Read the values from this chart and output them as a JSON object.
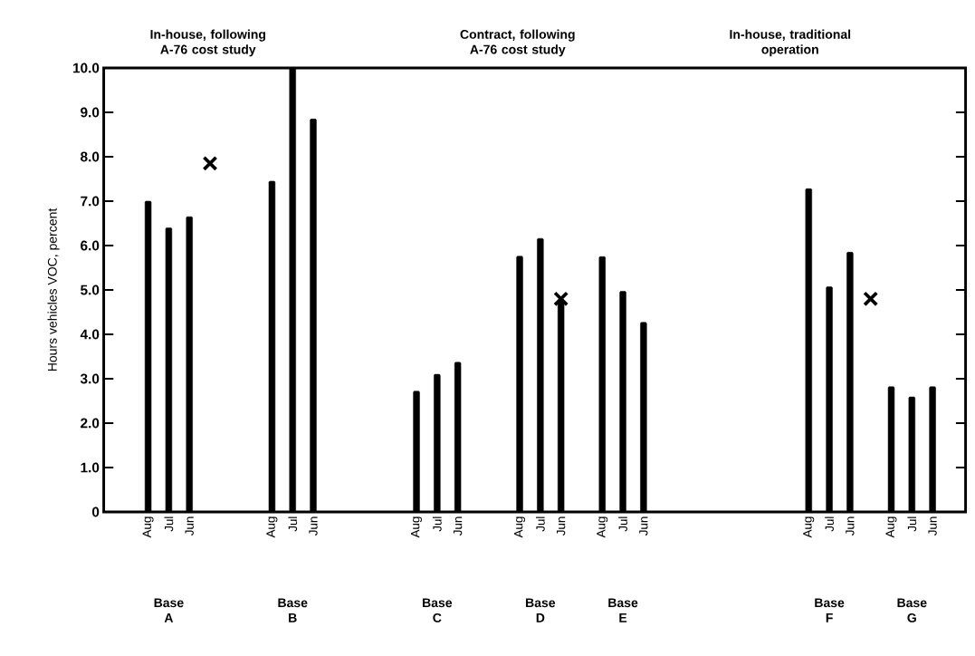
{
  "chart_data": {
    "type": "bar",
    "ylabel": "Hours vehicles VOC, percent",
    "categories": [
      null,
      null,
      "Aug",
      "Jul",
      "Jun",
      null,
      null,
      null,
      "Aug",
      "Jul",
      "Jun",
      null,
      null,
      null,
      null,
      "Aug",
      "Jul",
      "Jun",
      null,
      null,
      "Aug",
      "Jul",
      "Jun",
      null,
      "Aug",
      "Jul",
      "Jun",
      null,
      null,
      null,
      null,
      null,
      null,
      null,
      "Aug",
      "Jul",
      "Jun",
      null,
      "Aug",
      "Jul",
      "Jun",
      null
    ],
    "series": [
      {
        "color": "#000000",
        "values": [
          null,
          null,
          7.0,
          6.4,
          6.65,
          null,
          null,
          null,
          7.45,
          10.0,
          8.85,
          null,
          null,
          null,
          null,
          2.72,
          3.1,
          3.37,
          null,
          null,
          5.76,
          6.16,
          4.75,
          null,
          5.75,
          4.97,
          4.27,
          null,
          null,
          null,
          null,
          null,
          null,
          null,
          7.28,
          5.07,
          5.85,
          null,
          2.82,
          2.59,
          2.82,
          null
        ]
      },
      {
        "type": "scatter",
        "marker": "cross",
        "color": "#000000",
        "values": [
          null,
          null,
          null,
          null,
          null,
          7.85,
          null,
          null,
          null,
          null,
          null,
          null,
          null,
          null,
          null,
          null,
          null,
          null,
          null,
          null,
          null,
          null,
          4.8,
          null,
          null,
          null,
          null,
          null,
          null,
          null,
          null,
          null,
          null,
          null,
          null,
          null,
          null,
          4.8,
          null,
          null,
          null,
          null
        ]
      }
    ],
    "ylim": [
      0,
      10
    ],
    "yticks": [
      0,
      {
        "value": 1,
        "label": "1.0"
      },
      {
        "value": 2,
        "label": "2.0"
      },
      {
        "value": 3,
        "label": "3.0"
      },
      {
        "value": 4,
        "label": "4.0"
      },
      {
        "value": 5,
        "label": "5.0"
      },
      {
        "value": 6,
        "label": "6.0"
      },
      {
        "value": 7,
        "label": "7.0"
      },
      {
        "value": 8,
        "label": "8.0"
      },
      {
        "value": 9,
        "label": "9.0"
      },
      {
        "value": 10,
        "label": "10.0"
      }
    ],
    "annotations": [
      "In-house, following A-76 cost study",
      "Contract, following A-76 cost study",
      "In-house, traditional operation",
      "Base A",
      "Base B",
      "Base C",
      "Base D",
      "Base E",
      "Base F",
      "Base G"
    ]
  }
}
